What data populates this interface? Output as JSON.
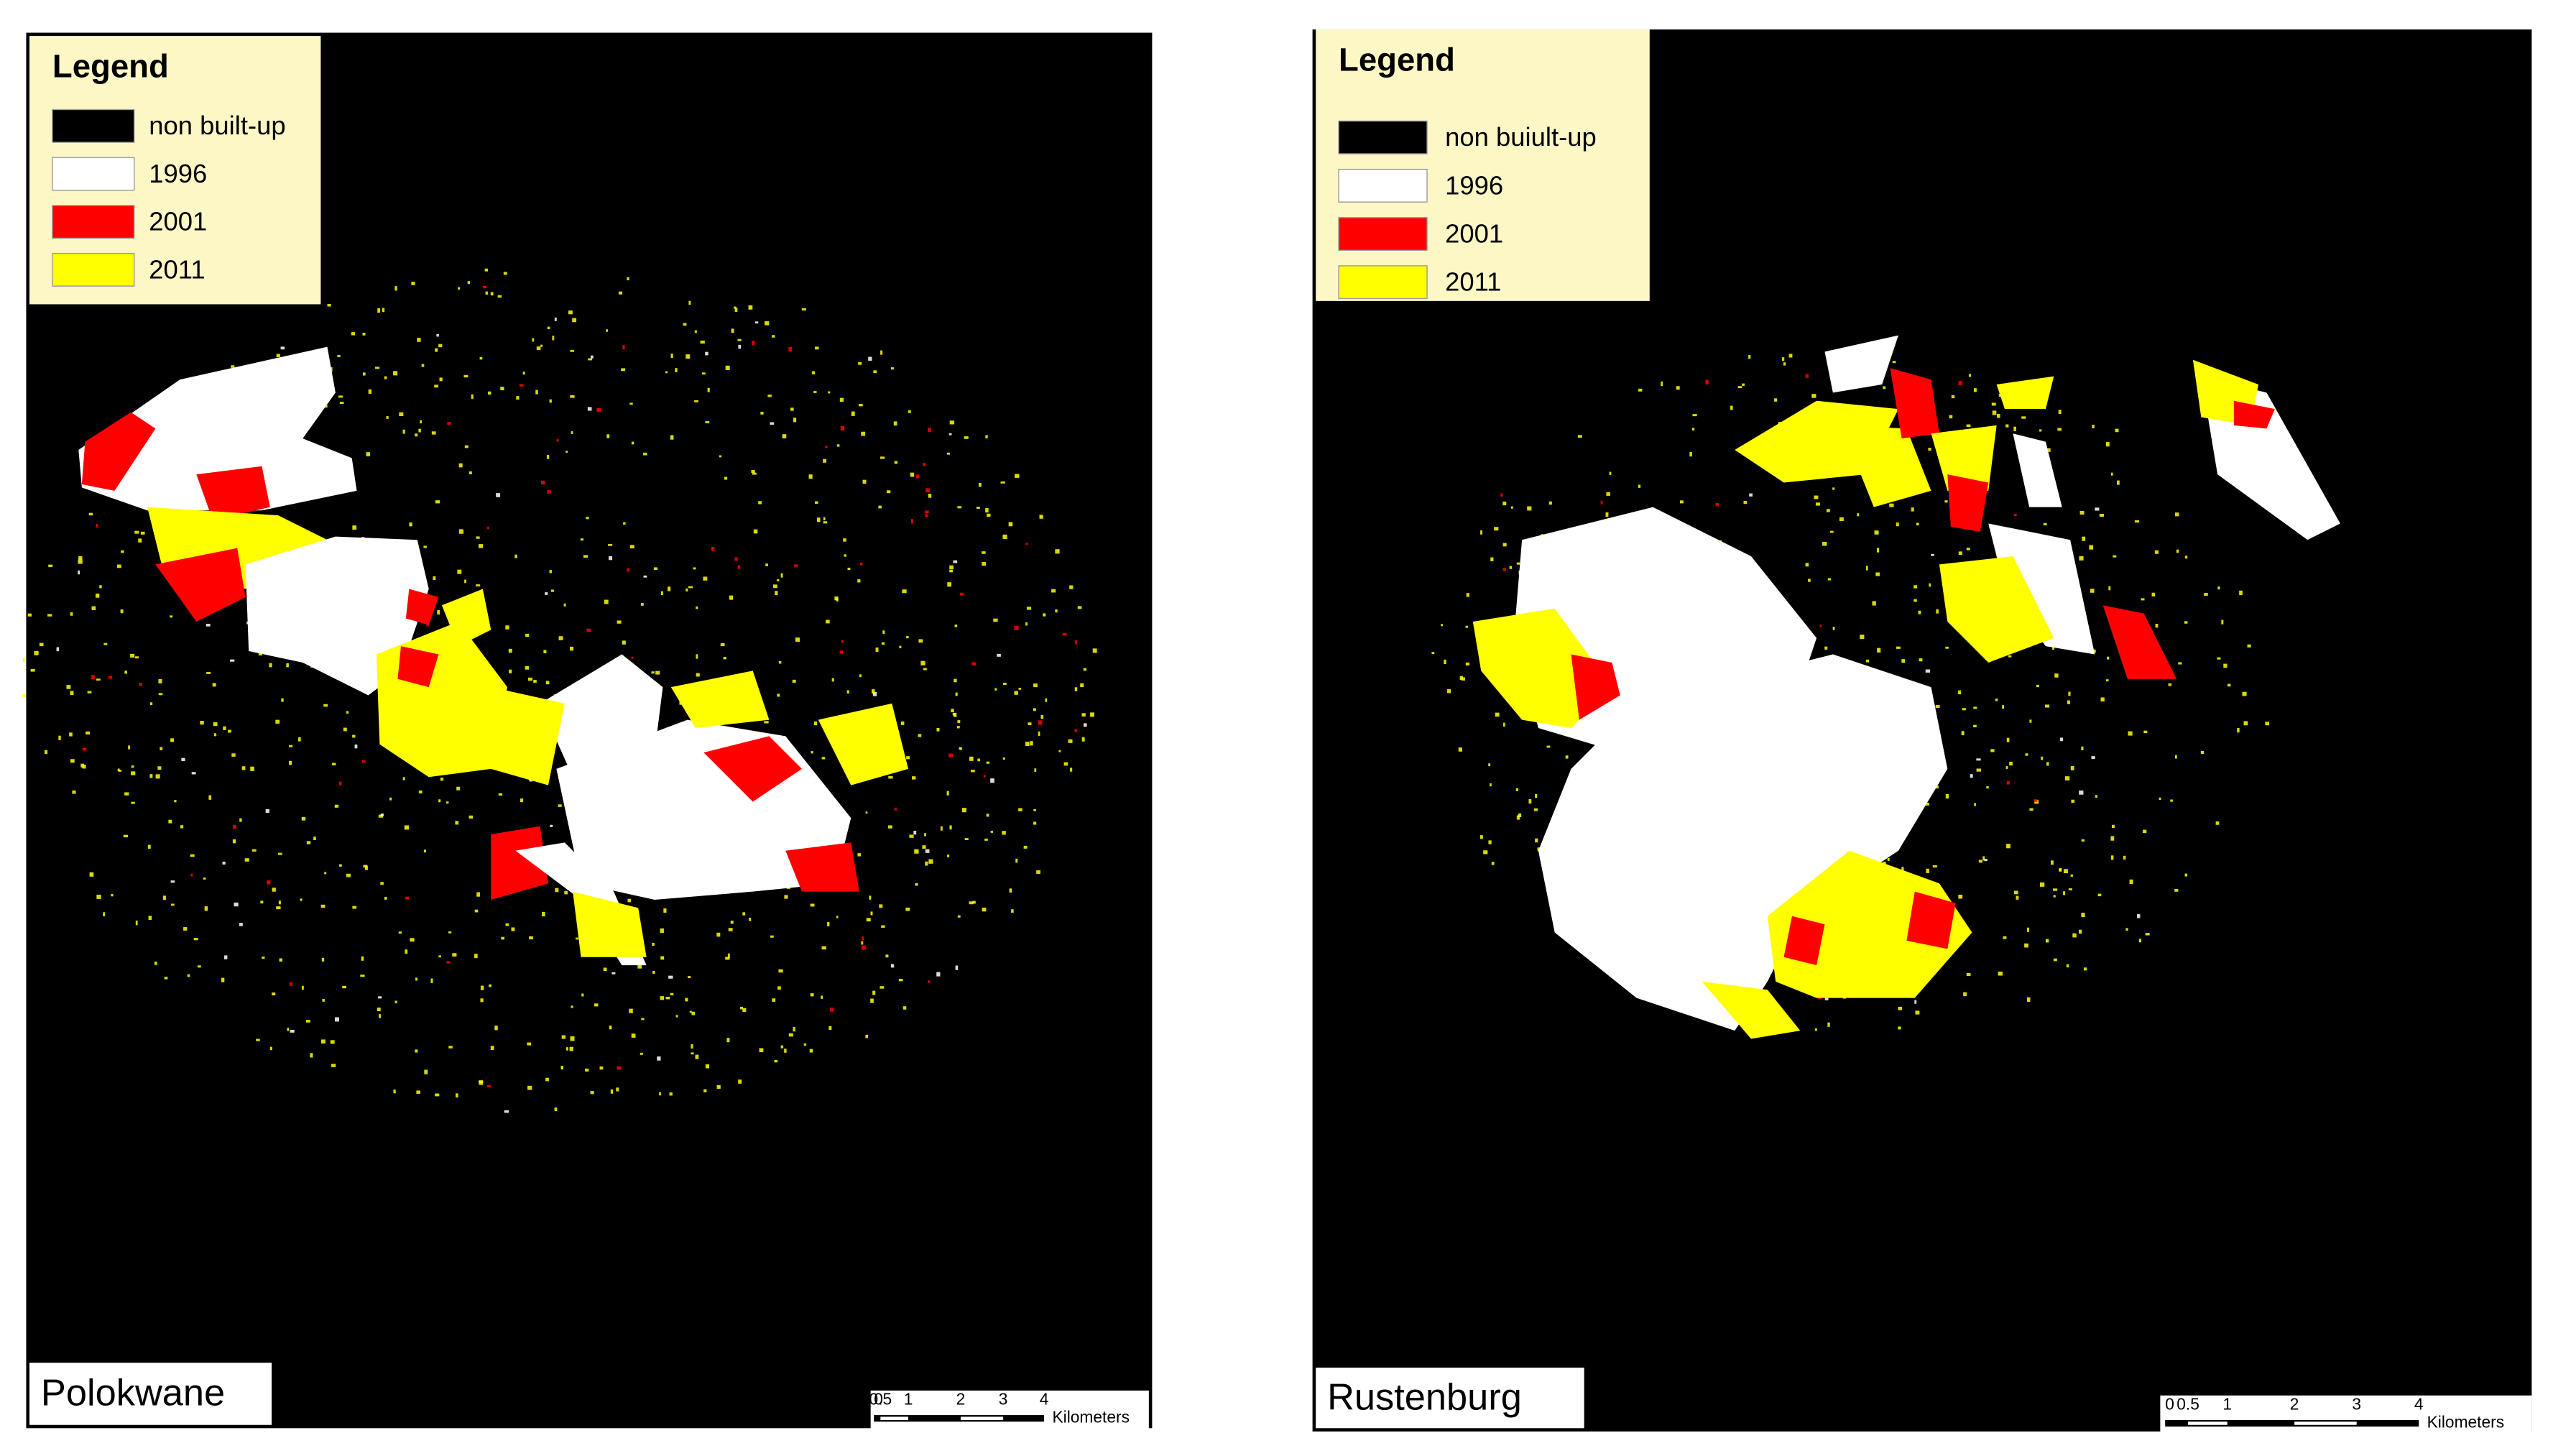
{
  "maps": [
    {
      "legend": {
        "title": "Legend",
        "items": [
          {
            "label": "non built-up",
            "color": "#000000"
          },
          {
            "label": "1996",
            "color": "#ffffff"
          },
          {
            "label": "2001",
            "color": "#ff0000"
          },
          {
            "label": "2011",
            "color": "#ffff00"
          }
        ]
      },
      "place": "Polokwane",
      "scale_bar": {
        "labels": [
          "0",
          "0.5",
          "1",
          "2",
          "3",
          "4"
        ],
        "unit": "Kilometers"
      }
    },
    {
      "legend": {
        "title": "Legend",
        "items": [
          {
            "label": "non buiult-up",
            "color": "#000000"
          },
          {
            "label": "1996",
            "color": "#ffffff"
          },
          {
            "label": "2001",
            "color": "#ff0000"
          },
          {
            "label": "2011",
            "color": "#ffff00"
          }
        ]
      },
      "place": "Rustenburg",
      "scale_bar": {
        "labels": [
          "0",
          "0.5",
          "1",
          "2",
          "3",
          "4"
        ],
        "unit": "Kilometers"
      }
    }
  ]
}
